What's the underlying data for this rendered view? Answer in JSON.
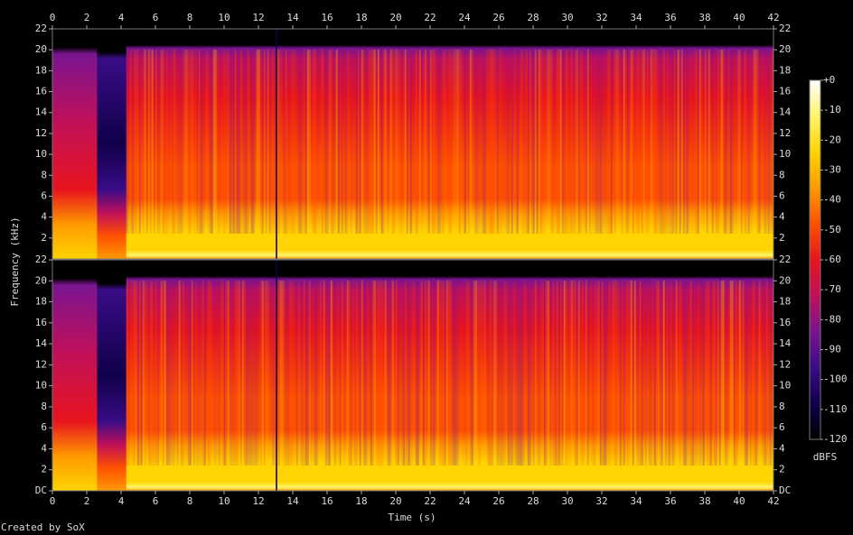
{
  "chart_data": {
    "type": "spectrogram",
    "xlabel": "Time (s)",
    "ylabel": "Frequency (kHz)",
    "credit": "Created by SoX",
    "xlim": [
      0,
      42
    ],
    "xticks": [
      0,
      2,
      4,
      6,
      8,
      10,
      12,
      14,
      16,
      18,
      20,
      22,
      24,
      26,
      28,
      30,
      32,
      34,
      36,
      38,
      40,
      42
    ],
    "panels": [
      {
        "ylim": [
          0,
          22
        ],
        "yticks": [
          2,
          4,
          6,
          8,
          10,
          12,
          14,
          16,
          18,
          20,
          22
        ]
      },
      {
        "ylim": [
          0,
          22
        ],
        "yticks": [
          {
            "value": 0,
            "label": "DC"
          },
          2,
          4,
          6,
          8,
          10,
          12,
          14,
          16,
          18,
          20,
          22
        ]
      }
    ],
    "colorbar": {
      "label": "dBFS",
      "lim": [
        -120,
        0
      ],
      "ticks": [
        {
          "value": 0,
          "label": "+0"
        },
        -10,
        -20,
        -30,
        -40,
        -50,
        -60,
        -70,
        -80,
        -90,
        -100,
        -110,
        -120
      ],
      "colors": [
        "#000000",
        "#10004a",
        "#3a0c86",
        "#7a1490",
        "#c0105a",
        "#e8141e",
        "#ff5000",
        "#ff9a00",
        "#ffd400",
        "#fff46a",
        "#ffffff"
      ]
    }
  }
}
